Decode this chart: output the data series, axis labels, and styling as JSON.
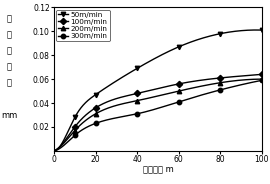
{
  "title": "",
  "xlabel": "切削长度 m",
  "xlim": [
    0,
    100
  ],
  "ylim": [
    0,
    0.12
  ],
  "xticks": [
    0,
    20,
    40,
    60,
    80,
    100
  ],
  "yticks": [
    0.02,
    0.04,
    0.06,
    0.08,
    0.1,
    0.12
  ],
  "ylabel_chars": [
    "后",
    "面",
    "磨",
    "损",
    "量",
    "",
    "mm"
  ],
  "series": [
    {
      "label": "50m/min",
      "x": [
        0,
        5,
        10,
        20,
        40,
        60,
        80,
        100
      ],
      "y": [
        0.0,
        0.01,
        0.028,
        0.047,
        0.069,
        0.087,
        0.098,
        0.101
      ],
      "marker": "v",
      "color": "#000000",
      "linewidth": 1.0,
      "marker_x": [
        10,
        20,
        40,
        60,
        80,
        100
      ],
      "marker_y": [
        0.028,
        0.047,
        0.069,
        0.087,
        0.098,
        0.101
      ]
    },
    {
      "label": "100m/min",
      "x": [
        0,
        5,
        10,
        20,
        40,
        60,
        80,
        100
      ],
      "y": [
        0.0,
        0.008,
        0.02,
        0.036,
        0.048,
        0.056,
        0.061,
        0.064
      ],
      "marker": "D",
      "color": "#000000",
      "linewidth": 1.0,
      "marker_x": [
        10,
        20,
        40,
        60,
        80,
        100
      ],
      "marker_y": [
        0.02,
        0.036,
        0.048,
        0.056,
        0.061,
        0.064
      ]
    },
    {
      "label": "200m/min",
      "x": [
        0,
        5,
        10,
        20,
        40,
        60,
        80,
        100
      ],
      "y": [
        0.0,
        0.007,
        0.017,
        0.031,
        0.042,
        0.05,
        0.057,
        0.06
      ],
      "marker": "^",
      "color": "#000000",
      "linewidth": 1.0,
      "marker_x": [
        10,
        20,
        40,
        60,
        80,
        100
      ],
      "marker_y": [
        0.017,
        0.031,
        0.042,
        0.05,
        0.057,
        0.06
      ]
    },
    {
      "label": "300m/min",
      "x": [
        0,
        5,
        10,
        20,
        40,
        60,
        80,
        100
      ],
      "y": [
        0.0,
        0.005,
        0.013,
        0.023,
        0.031,
        0.041,
        0.051,
        0.059
      ],
      "marker": "o",
      "color": "#000000",
      "linewidth": 1.0,
      "marker_x": [
        10,
        20,
        40,
        60,
        80,
        100
      ],
      "marker_y": [
        0.013,
        0.023,
        0.031,
        0.041,
        0.051,
        0.059
      ]
    }
  ],
  "legend_fontsize": 5.2,
  "axis_fontsize": 6.0,
  "tick_fontsize": 5.5,
  "ylabel_fontsize": 6.0,
  "background_color": "#ffffff"
}
